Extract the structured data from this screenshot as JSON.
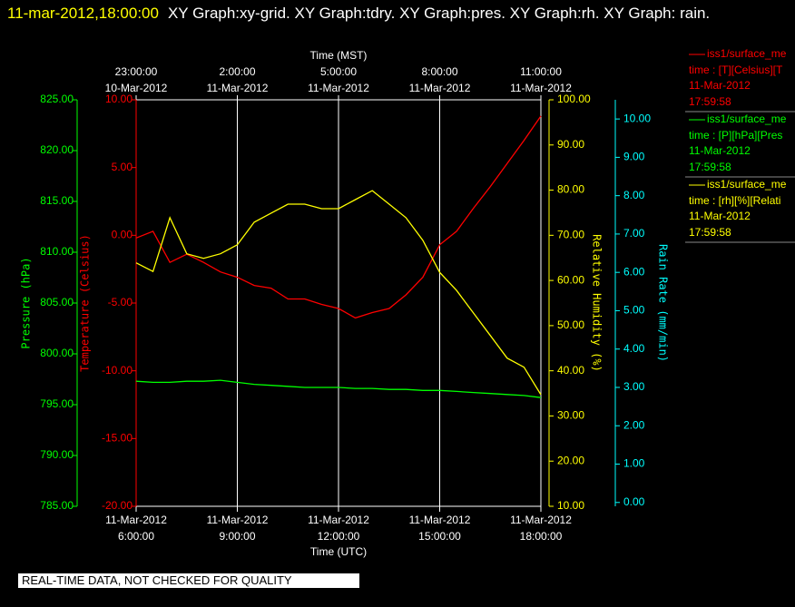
{
  "header": {
    "timestamp": "11-mar-2012,18:00:00",
    "title": "XY Graph:xy-grid.  XY Graph:tdry.  XY Graph:pres.  XY Graph:rh.  XY Graph: rain."
  },
  "footer": {
    "note": "REAL-TIME DATA, NOT CHECKED FOR QUALITY"
  },
  "chart_data": {
    "type": "line",
    "xlabel": "Time (UTC)",
    "x2label": "Time (MST)",
    "xlim": [
      6,
      18
    ],
    "xticks": [
      {
        "value": 6,
        "label": "6:00:00"
      },
      {
        "value": 9,
        "label": "9:00:00"
      },
      {
        "value": 12,
        "label": "12:00:00"
      },
      {
        "value": 15,
        "label": "15:00:00"
      },
      {
        "value": 18,
        "label": "18:00:00"
      }
    ],
    "xtick_dates": [
      "11-Mar-2012",
      "11-Mar-2012",
      "11-Mar-2012",
      "11-Mar-2012",
      "11-Mar-2012"
    ],
    "x2ticks": [
      {
        "value": 6,
        "label": "23:00:00"
      },
      {
        "value": 9,
        "label": "2:00:00"
      },
      {
        "value": 12,
        "label": "5:00:00"
      },
      {
        "value": 15,
        "label": "8:00:00"
      },
      {
        "value": 18,
        "label": "11:00:00"
      }
    ],
    "x2tick_dates": [
      "10-Mar-2012",
      "11-Mar-2012",
      "11-Mar-2012",
      "11-Mar-2012",
      "11-Mar-2012"
    ],
    "grid": true,
    "axes": [
      {
        "ylabel": "Pressure (hPa)",
        "color": "#00ff00",
        "side": "left",
        "ylim": [
          785,
          825
        ],
        "yticks": [
          {
            "value": 785,
            "label": "785.00"
          },
          {
            "value": 790,
            "label": "790.00"
          },
          {
            "value": 795,
            "label": "795.00"
          },
          {
            "value": 800,
            "label": "800.00"
          },
          {
            "value": 805,
            "label": "805.00"
          },
          {
            "value": 810,
            "label": "810.00"
          },
          {
            "value": 815,
            "label": "815.00"
          },
          {
            "value": 820,
            "label": "820.00"
          },
          {
            "value": 825,
            "label": "825.00"
          }
        ]
      },
      {
        "ylabel": "Temperature (Celsius)",
        "color": "#ff0000",
        "side": "left",
        "ylim": [
          -20,
          10
        ],
        "yticks": [
          {
            "value": -20,
            "label": "-20.00"
          },
          {
            "value": -15,
            "label": "-15.00"
          },
          {
            "value": -10,
            "label": "-10.00"
          },
          {
            "value": -5,
            "label": "-5.00"
          },
          {
            "value": 0,
            "label": "0.00"
          },
          {
            "value": 5,
            "label": "5.00"
          },
          {
            "value": 10,
            "label": "10.00"
          }
        ]
      },
      {
        "ylabel": "Relative Humidity (%)",
        "color": "#ffff00",
        "side": "right",
        "ylim": [
          10,
          100
        ],
        "yticks": [
          {
            "value": 10,
            "label": "10.00"
          },
          {
            "value": 20,
            "label": "20.00"
          },
          {
            "value": 30,
            "label": "30.00"
          },
          {
            "value": 40,
            "label": "40.00"
          },
          {
            "value": 50,
            "label": "50.00"
          },
          {
            "value": 60,
            "label": "60.00"
          },
          {
            "value": 70,
            "label": "70.00"
          },
          {
            "value": 80,
            "label": "80.00"
          },
          {
            "value": 90,
            "label": "90.00"
          },
          {
            "value": 100,
            "label": "100.00"
          }
        ]
      },
      {
        "ylabel": "Rain Rate (mm/min)",
        "color": "#00ffff",
        "side": "right",
        "ylim": [
          -0.1,
          10.5
        ],
        "yticks": [
          {
            "value": 0,
            "label": "0.00"
          },
          {
            "value": 1,
            "label": "1.00"
          },
          {
            "value": 2,
            "label": "2.00"
          },
          {
            "value": 3,
            "label": "3.00"
          },
          {
            "value": 4,
            "label": "4.00"
          },
          {
            "value": 5,
            "label": "5.00"
          },
          {
            "value": 6,
            "label": "6.00"
          },
          {
            "value": 7,
            "label": "7.00"
          },
          {
            "value": 8,
            "label": "8.00"
          },
          {
            "value": 9,
            "label": "9.00"
          },
          {
            "value": 10,
            "label": "10.00"
          }
        ]
      }
    ],
    "x": [
      6,
      6.5,
      7,
      7.5,
      8,
      8.5,
      9,
      9.5,
      10,
      10.5,
      11,
      11.5,
      12,
      12.5,
      13,
      13.5,
      14,
      14.5,
      15,
      15.5,
      16,
      16.5,
      17,
      17.5,
      18
    ],
    "series": [
      {
        "name": "iss1/surface_me",
        "detail": "time : [T][Celsius][T",
        "date": "11-Mar-2012",
        "time": "17:59:58",
        "color": "#ff0000",
        "axis": 1,
        "values": [
          -0.2,
          0.3,
          -2.0,
          -1.4,
          -2.0,
          -2.7,
          -3.1,
          -3.7,
          -3.9,
          -4.7,
          -4.7,
          -5.1,
          -5.4,
          -6.1,
          -5.7,
          -5.4,
          -4.4,
          -3.1,
          -0.7,
          0.3,
          2.0,
          3.6,
          5.3,
          7.0,
          8.8
        ]
      },
      {
        "name": "iss1/surface_me",
        "detail": "time : [P][hPa][Pres",
        "date": "11-Mar-2012",
        "time": "17:59:58",
        "color": "#00ff00",
        "axis": 0,
        "values": [
          797.3,
          797.2,
          797.2,
          797.3,
          797.3,
          797.4,
          797.2,
          797.0,
          796.9,
          796.8,
          796.7,
          796.7,
          796.7,
          796.6,
          796.6,
          796.5,
          796.5,
          796.4,
          796.4,
          796.3,
          796.2,
          796.1,
          796.0,
          795.9,
          795.7
        ]
      },
      {
        "name": "iss1/surface_me",
        "detail": "time : [rh][%][Relati",
        "date": "11-Mar-2012",
        "time": "17:59:58",
        "color": "#ffff00",
        "axis": 2,
        "values": [
          63.9,
          62.0,
          73.9,
          65.9,
          64.9,
          65.9,
          67.9,
          72.9,
          74.9,
          76.9,
          76.9,
          75.9,
          75.9,
          77.9,
          79.9,
          76.9,
          73.9,
          68.9,
          61.8,
          57.8,
          52.8,
          47.8,
          42.8,
          40.8,
          34.7
        ]
      }
    ]
  }
}
